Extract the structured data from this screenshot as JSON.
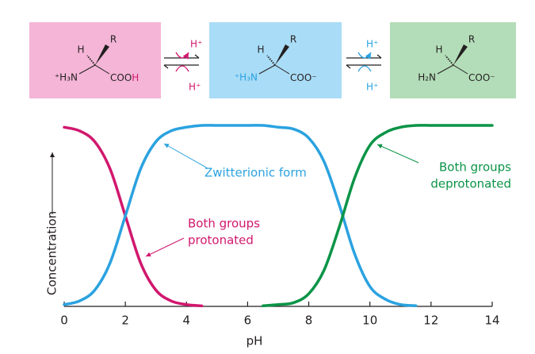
{
  "diagram": {
    "species": [
      {
        "h": "H",
        "r": "R",
        "amine": "⁺H₃N",
        "carboxyl": "COO",
        "carboxyl_end": "H"
      },
      {
        "h": "H",
        "r": "R",
        "amine": "⁺H₃N",
        "carboxyl": "COO⁻"
      },
      {
        "h": "H",
        "r": "R",
        "amine": "H₂N",
        "carboxyl": "COO⁻"
      }
    ],
    "equilibria": [
      {
        "top": "H⁺",
        "bottom": "H⁺"
      },
      {
        "top": "H⁺",
        "bottom": "H⁺"
      }
    ]
  },
  "chart_data": {
    "type": "line",
    "xlabel": "pH",
    "ylabel": "Concentration",
    "x": [
      0,
      0.5,
      1,
      1.5,
      2,
      2.5,
      3,
      3.5,
      4,
      4.5,
      5,
      5.5,
      6,
      6.5,
      7,
      7.5,
      8,
      8.5,
      9,
      9.5,
      10,
      10.5,
      11,
      11.5,
      12,
      12.5,
      13,
      13.5,
      14
    ],
    "series": [
      {
        "color": "#d1176e",
        "values": [
          0.99,
          0.97,
          0.91,
          0.76,
          0.5,
          0.24,
          0.09,
          0.03,
          0.01,
          0.003,
          null,
          null,
          null,
          null,
          null,
          null,
          null,
          null,
          null,
          null,
          null,
          null,
          null,
          null,
          null,
          null,
          null,
          null,
          null
        ]
      },
      {
        "color": "#2aa2e0",
        "values": [
          0.01,
          0.03,
          0.09,
          0.24,
          0.5,
          0.76,
          0.91,
          0.97,
          0.99,
          1,
          1,
          1,
          1,
          1,
          0.99,
          0.98,
          0.93,
          0.8,
          0.56,
          0.29,
          0.11,
          0.04,
          0.01,
          0.004,
          null,
          null,
          null,
          null,
          null
        ]
      },
      {
        "color": "#0b9447",
        "values": [
          null,
          null,
          null,
          null,
          null,
          null,
          null,
          null,
          null,
          null,
          null,
          null,
          null,
          0.003,
          0.01,
          0.02,
          0.07,
          0.2,
          0.44,
          0.71,
          0.89,
          0.96,
          0.99,
          1,
          1,
          1,
          1,
          1,
          1
        ]
      }
    ],
    "annotations": [
      {
        "lines": [
          "Zwitterionic form"
        ],
        "color": "#2aa2e0"
      },
      {
        "lines": [
          "Both groups",
          "protonated"
        ],
        "color": "#d1176e"
      },
      {
        "lines": [
          "Both groups",
          "deprotonated"
        ],
        "color": "#0b9447"
      }
    ],
    "xlim": [
      0,
      14
    ],
    "ylim": [
      0,
      1
    ],
    "xticks": [
      0,
      2,
      4,
      6,
      8,
      10,
      12,
      14
    ]
  }
}
